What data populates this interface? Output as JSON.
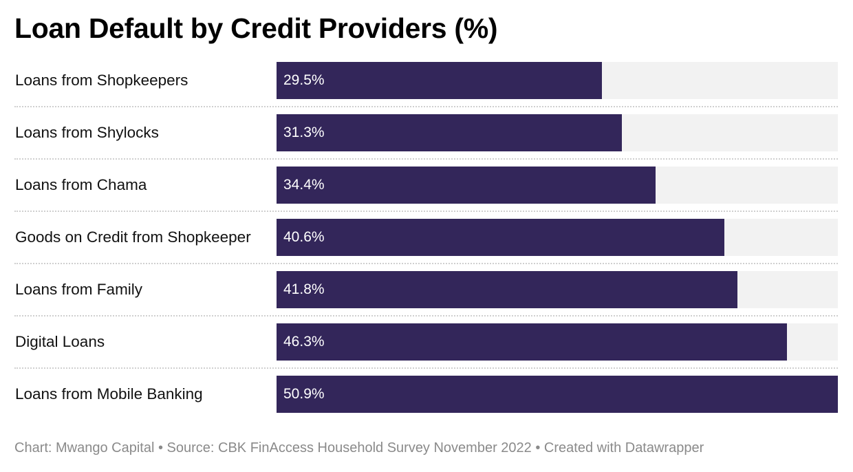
{
  "chart_data": {
    "type": "bar",
    "orientation": "horizontal",
    "title": "Loan Default by Credit Providers (%)",
    "categories": [
      "Loans from Shopkeepers",
      "Loans from Shylocks",
      "Loans from Chama",
      "Goods on Credit from Shopkeeper",
      "Loans from Family",
      "Digital Loans",
      "Loans from Mobile Banking"
    ],
    "values": [
      29.5,
      31.3,
      34.4,
      40.6,
      41.8,
      46.3,
      50.9
    ],
    "value_labels": [
      "29.5%",
      "31.3%",
      "34.4%",
      "40.6%",
      "41.8%",
      "46.3%",
      "50.9%"
    ],
    "xlim": [
      0,
      50.9
    ],
    "bar_color": "#33265a",
    "track_color": "#f2f2f2",
    "grid": false,
    "legend": "none"
  },
  "footer": {
    "text": "Chart: Mwango Capital • Source: CBK FinAccess Household Survey November 2022 • Created with Datawrapper"
  }
}
